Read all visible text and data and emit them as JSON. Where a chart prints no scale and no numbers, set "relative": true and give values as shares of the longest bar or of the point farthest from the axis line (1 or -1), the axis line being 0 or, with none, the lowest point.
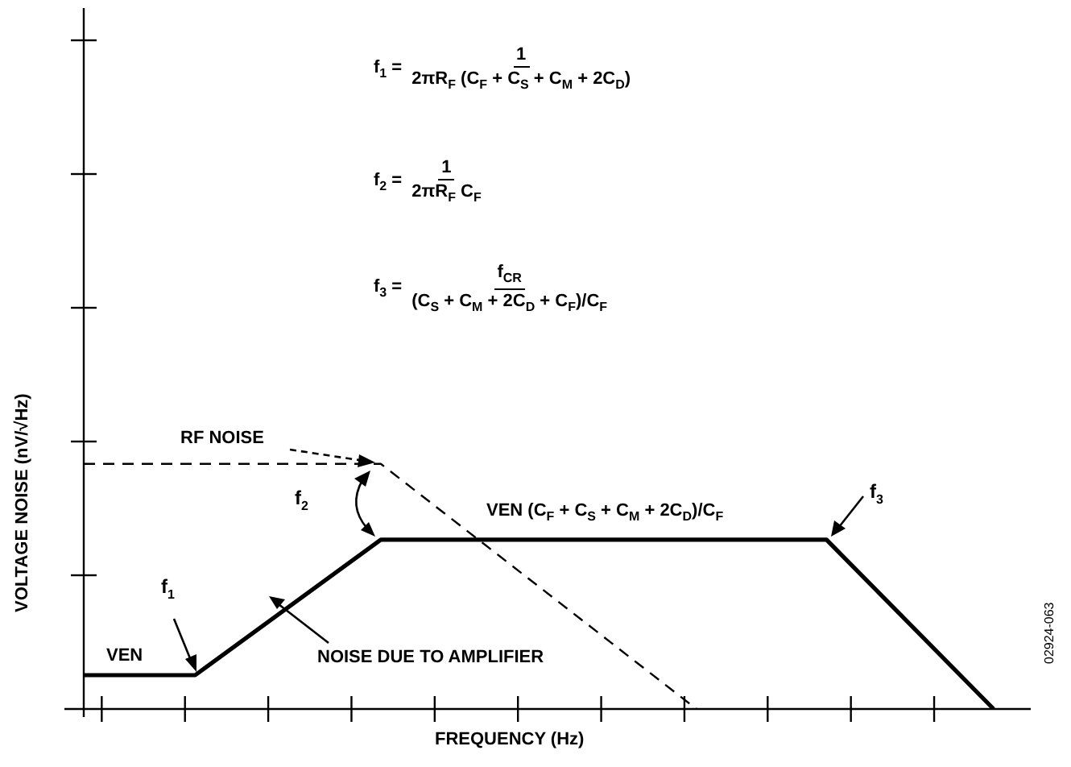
{
  "chart_data": {
    "type": "line",
    "relative": true,
    "xlabel": "FREQUENCY (Hz)",
    "ylabel": "VOLTAGE NOISE (nV/√Hz)",
    "legend": false,
    "marker": "none",
    "categories": [
      null,
      null,
      null,
      null,
      null,
      null,
      null,
      null,
      null,
      null,
      null,
      null,
      null,
      null,
      null,
      null,
      null,
      null,
      null,
      null,
      null,
      null,
      null,
      null,
      null,
      null,
      null,
      null,
      null,
      null,
      null,
      null,
      null,
      null,
      null,
      null,
      null,
      null,
      null,
      null,
      null,
      null,
      null,
      null,
      null,
      null,
      null,
      null,
      null,
      null,
      null,
      null
    ],
    "series": [
      {
        "color": "#000000",
        "line_style": "solid",
        "values": [
          0.138,
          null,
          null,
          null,
          null,
          null,
          0.138,
          null,
          null,
          null,
          null,
          null,
          null,
          null,
          null,
          null,
          0.691,
          null,
          null,
          null,
          null,
          null,
          null,
          null,
          null,
          null,
          null,
          null,
          null,
          null,
          null,
          null,
          null,
          null,
          null,
          null,
          null,
          null,
          null,
          null,
          0.691,
          null,
          null,
          null,
          null,
          null,
          null,
          null,
          null,
          0,
          null,
          null
        ]
      },
      {
        "color": "#000000",
        "line_style": "dashed",
        "values": [
          1,
          null,
          null,
          null,
          null,
          null,
          null,
          null,
          null,
          null,
          null,
          null,
          null,
          null,
          null,
          null,
          1,
          null,
          null,
          null,
          null,
          null,
          null,
          null,
          null,
          null,
          null,
          null,
          null,
          null,
          null,
          null,
          null,
          0,
          null,
          null,
          null,
          null,
          null,
          null,
          null,
          null,
          null,
          null,
          null,
          null,
          null,
          null,
          null,
          null,
          null,
          null
        ]
      }
    ],
    "annotations": [
      "f$_{1}$ =",
      "1",
      "2πR$_{F}$ (C$_{F}$ + C$_{S}$ + C$_{M}$ + 2C$_{D}$)",
      "f$_{2}$ =",
      "1",
      "2πR$_{F}$ C$_{F}$",
      "f$_{3}$ =",
      "f$_{CR}$",
      "(C$_{S}$ + C$_{M}$ + 2C$_{D}$ + C$_{F}$)/C$_{F}$",
      "VEN",
      "VEN (C$_{F}$ + C$_{S}$ + C$_{M}$ + 2C$_{D}$)/C$_{F}$",
      "f$_{1}$",
      "f$_{2}$",
      "f$_{3}$",
      "02924-063",
      "RF NOISE",
      "NOISE DUE TO AMPLIFIER"
    ]
  }
}
